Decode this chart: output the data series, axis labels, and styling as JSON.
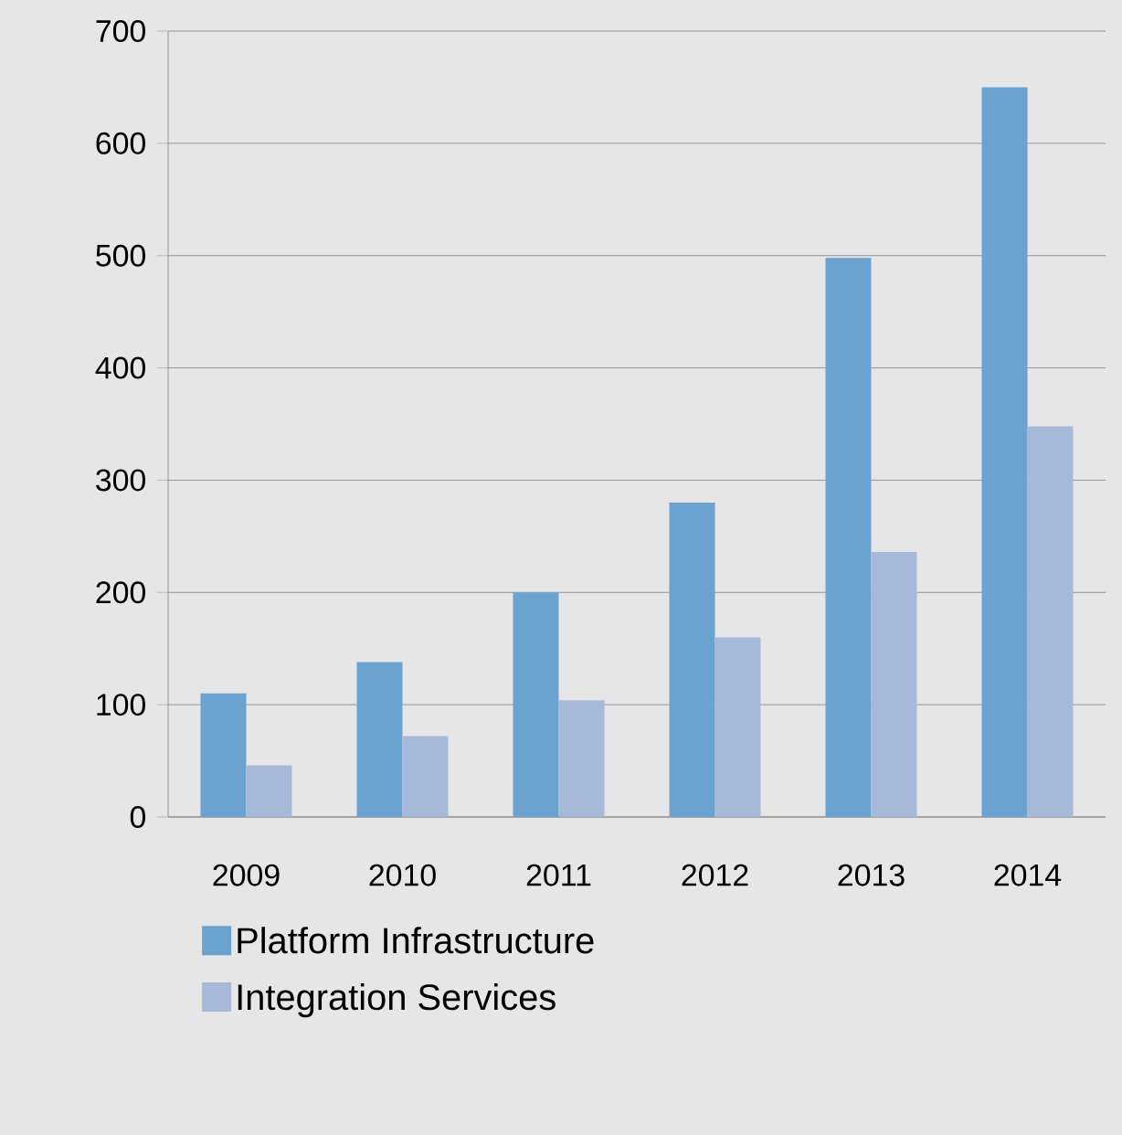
{
  "chart_data": {
    "type": "bar",
    "categories": [
      "2009",
      "2010",
      "2011",
      "2012",
      "2013",
      "2014"
    ],
    "series": [
      {
        "name": "Platform Infrastructure",
        "color": "#6aa3cf",
        "values": [
          110,
          138,
          200,
          280,
          498,
          650
        ]
      },
      {
        "name": "Integration Services",
        "color": "#a6b9d9",
        "values": [
          46,
          72,
          104,
          160,
          236,
          348
        ]
      }
    ],
    "ylim": [
      0,
      700
    ],
    "yticks": [
      0,
      100,
      200,
      300,
      400,
      500,
      600,
      700
    ],
    "grid": "y",
    "legend": "bottom"
  }
}
